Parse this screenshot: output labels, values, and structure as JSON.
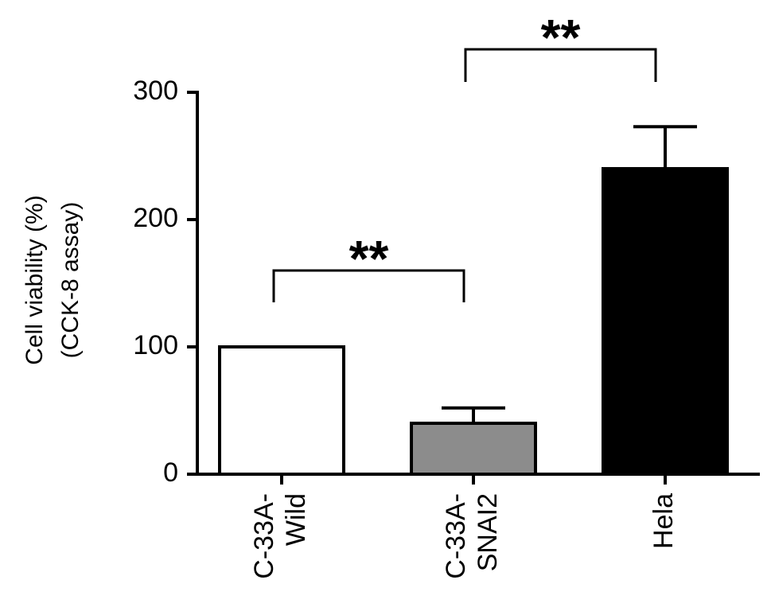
{
  "chart_data": {
    "type": "bar",
    "ylabel": [
      "Cell viability (%)",
      "(CCK-8 assay)"
    ],
    "categories": [
      [
        "C-33A-",
        "Wild"
      ],
      [
        "C-33A-",
        "SNAI2"
      ],
      [
        "Hela"
      ]
    ],
    "values": [
      100,
      40,
      240
    ],
    "errors": [
      null,
      12,
      33
    ],
    "colors": [
      "#ffffff",
      "#8c8c8c",
      "#000000"
    ],
    "ylim": [
      0,
      300
    ],
    "yticks": [
      0,
      100,
      200,
      300
    ],
    "annotations": [
      {
        "text": "**"
      },
      {
        "text": "**"
      }
    ]
  }
}
